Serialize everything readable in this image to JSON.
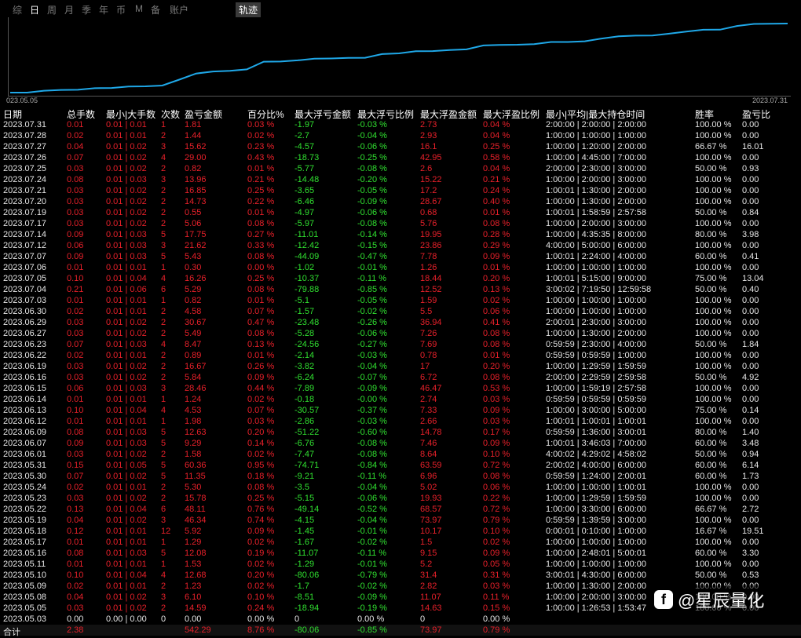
{
  "tabs": [
    "综",
    "日",
    "周",
    "月",
    "季",
    "年",
    "币",
    "M",
    "备",
    "账户"
  ],
  "active_tab": "日",
  "traj_label": "轨迹",
  "chart": {
    "start_label": "023.05.05",
    "end_label": "2023.07.31",
    "line_color": "#1fa8e8"
  },
  "headers": [
    "日期",
    "总手数",
    "最小|大手数",
    "次数",
    "盈亏金额",
    "百分比%",
    "最大浮亏金额",
    "最大浮亏比例",
    "最大浮盈金额",
    "最大浮盈比例",
    "最小|平均|最大持仓时间",
    "胜率",
    "盈亏比"
  ],
  "rows": [
    [
      "2023.07.31",
      "0.01",
      "0.01 | 0.01",
      "1",
      "1.81",
      "0.03 %",
      "-1.97",
      "-0.03 %",
      "2.73",
      "0.04 %",
      "2:00:00 | 2:00:00 | 2:00:00",
      "100.00 %",
      "0.00"
    ],
    [
      "2023.07.28",
      "0.02",
      "0.01 | 0.01",
      "2",
      "1.44",
      "0.02 %",
      "-2.7",
      "-0.04 %",
      "2.93",
      "0.04 %",
      "1:00:00 | 1:00:00 | 1:00:00",
      "100.00 %",
      "0.00"
    ],
    [
      "2023.07.27",
      "0.04",
      "0.01 | 0.02",
      "3",
      "15.62",
      "0.23 %",
      "-4.57",
      "-0.06 %",
      "16.1",
      "0.25 %",
      "1:00:00 | 1:20:00 | 2:00:00",
      "66.67 %",
      "16.01"
    ],
    [
      "2023.07.26",
      "0.07",
      "0.01 | 0.02",
      "4",
      "29.00",
      "0.43 %",
      "-18.73",
      "-0.25 %",
      "42.95",
      "0.58 %",
      "1:00:00 | 4:45:00 | 7:00:00",
      "100.00 %",
      "0.00"
    ],
    [
      "2023.07.25",
      "0.03",
      "0.01 | 0.02",
      "2",
      "0.82",
      "0.01 %",
      "-5.77",
      "-0.08 %",
      "2.6",
      "0.04 %",
      "2:00:00 | 2:30:00 | 3:00:00",
      "50.00 %",
      "0.93"
    ],
    [
      "2023.07.24",
      "0.08",
      "0.01 | 0.03",
      "3",
      "13.96",
      "0.21 %",
      "-14.48",
      "-0.20 %",
      "15.22",
      "0.21 %",
      "1:00:00 | 2:00:00 | 3:00:00",
      "100.00 %",
      "0.00"
    ],
    [
      "2023.07.21",
      "0.03",
      "0.01 | 0.02",
      "2",
      "16.85",
      "0.25 %",
      "-3.65",
      "-0.05 %",
      "17.2",
      "0.24 %",
      "1:00:01 | 1:30:00 | 2:00:00",
      "100.00 %",
      "0.00"
    ],
    [
      "2023.07.20",
      "0.03",
      "0.01 | 0.02",
      "2",
      "14.73",
      "0.22 %",
      "-6.46",
      "-0.09 %",
      "28.67",
      "0.40 %",
      "1:00:00 | 1:30:00 | 2:00:00",
      "100.00 %",
      "0.00"
    ],
    [
      "2023.07.19",
      "0.03",
      "0.01 | 0.02",
      "2",
      "0.55",
      "0.01 %",
      "-4.97",
      "-0.06 %",
      "0.68",
      "0.01 %",
      "1:00:01 | 1:58:59 | 2:57:58",
      "50.00 %",
      "0.84"
    ],
    [
      "2023.07.17",
      "0.03",
      "0.01 | 0.02",
      "2",
      "5.06",
      "0.08 %",
      "-5.97",
      "-0.08 %",
      "5.76",
      "0.08 %",
      "1:00:00 | 2:00:00 | 3:00:00",
      "100.00 %",
      "0.00"
    ],
    [
      "2023.07.14",
      "0.09",
      "0.01 | 0.03",
      "5",
      "17.75",
      "0.27 %",
      "-11.01",
      "-0.14 %",
      "19.95",
      "0.28 %",
      "1:00:00 | 4:35:35 | 8:00:00",
      "80.00 %",
      "3.98"
    ],
    [
      "2023.07.12",
      "0.06",
      "0.01 | 0.03",
      "3",
      "21.62",
      "0.33 %",
      "-12.42",
      "-0.15 %",
      "23.86",
      "0.29 %",
      "4:00:00 | 5:00:00 | 6:00:00",
      "100.00 %",
      "0.00"
    ],
    [
      "2023.07.07",
      "0.09",
      "0.01 | 0.03",
      "5",
      "5.43",
      "0.08 %",
      "-44.09",
      "-0.47 %",
      "7.78",
      "0.09 %",
      "1:00:01 | 2:24:00 | 4:00:00",
      "60.00 %",
      "0.41"
    ],
    [
      "2023.07.06",
      "0.01",
      "0.01 | 0.01",
      "1",
      "0.30",
      "0.00 %",
      "-1.02",
      "-0.01 %",
      "1.26",
      "0.01 %",
      "1:00:00 | 1:00:00 | 1:00:00",
      "100.00 %",
      "0.00"
    ],
    [
      "2023.07.05",
      "0.10",
      "0.01 | 0.04",
      "4",
      "16.26",
      "0.25 %",
      "-10.37",
      "-0.11 %",
      "18.44",
      "0.20 %",
      "1:00:01 | 5:15:00 | 9:00:00",
      "75.00 %",
      "13.04"
    ],
    [
      "2023.07.04",
      "0.21",
      "0.01 | 0.06",
      "6",
      "5.29",
      "0.08 %",
      "-79.88",
      "-0.85 %",
      "12.52",
      "0.13 %",
      "3:00:02 | 7:19:50 | 12:59:58",
      "50.00 %",
      "0.40"
    ],
    [
      "2023.07.03",
      "0.01",
      "0.01 | 0.01",
      "1",
      "0.82",
      "0.01 %",
      "-5.1",
      "-0.05 %",
      "1.59",
      "0.02 %",
      "1:00:00 | 1:00:00 | 1:00:00",
      "100.00 %",
      "0.00"
    ],
    [
      "2023.06.30",
      "0.02",
      "0.01 | 0.01",
      "2",
      "4.58",
      "0.07 %",
      "-1.57",
      "-0.02 %",
      "5.5",
      "0.06 %",
      "1:00:00 | 1:00:00 | 1:00:00",
      "100.00 %",
      "0.00"
    ],
    [
      "2023.06.29",
      "0.03",
      "0.01 | 0.02",
      "2",
      "30.67",
      "0.47 %",
      "-23.48",
      "-0.26 %",
      "36.94",
      "0.41 %",
      "2:00:01 | 2:30:00 | 3:00:00",
      "100.00 %",
      "0.00"
    ],
    [
      "2023.06.27",
      "0.03",
      "0.01 | 0.02",
      "2",
      "5.49",
      "0.08 %",
      "-5.28",
      "-0.06 %",
      "7.26",
      "0.08 %",
      "1:00:00 | 1:30:00 | 2:00:00",
      "100.00 %",
      "0.00"
    ],
    [
      "2023.06.23",
      "0.07",
      "0.01 | 0.03",
      "4",
      "8.47",
      "0.13 %",
      "-24.56",
      "-0.27 %",
      "7.69",
      "0.08 %",
      "0:59:59 | 2:30:00 | 4:00:00",
      "50.00 %",
      "1.84"
    ],
    [
      "2023.06.22",
      "0.02",
      "0.01 | 0.01",
      "2",
      "0.89",
      "0.01 %",
      "-2.14",
      "-0.03 %",
      "0.78",
      "0.01 %",
      "0:59:59 | 0:59:59 | 1:00:00",
      "100.00 %",
      "0.00"
    ],
    [
      "2023.06.19",
      "0.03",
      "0.01 | 0.02",
      "2",
      "16.67",
      "0.26 %",
      "-3.82",
      "-0.04 %",
      "17",
      "0.20 %",
      "1:00:00 | 1:29:59 | 1:59:59",
      "100.00 %",
      "0.00"
    ],
    [
      "2023.06.16",
      "0.03",
      "0.01 | 0.02",
      "2",
      "5.84",
      "0.09 %",
      "-6.24",
      "-0.07 %",
      "6.72",
      "0.08 %",
      "2:00:00 | 2:29:59 | 2:59:58",
      "50.00 %",
      "4.92"
    ],
    [
      "2023.06.15",
      "0.06",
      "0.01 | 0.03",
      "3",
      "28.46",
      "0.44 %",
      "-7.89",
      "-0.09 %",
      "46.47",
      "0.53 %",
      "1:00:00 | 1:59:19 | 2:57:58",
      "100.00 %",
      "0.00"
    ],
    [
      "2023.06.14",
      "0.01",
      "0.01 | 0.01",
      "1",
      "1.24",
      "0.02 %",
      "-0.18",
      "-0.00 %",
      "2.74",
      "0.03 %",
      "0:59:59 | 0:59:59 | 0:59:59",
      "100.00 %",
      "0.00"
    ],
    [
      "2023.06.13",
      "0.10",
      "0.01 | 0.04",
      "4",
      "4.53",
      "0.07 %",
      "-30.57",
      "-0.37 %",
      "7.33",
      "0.09 %",
      "1:00:00 | 3:00:00 | 5:00:00",
      "75.00 %",
      "0.14"
    ],
    [
      "2023.06.12",
      "0.01",
      "0.01 | 0.01",
      "1",
      "1.98",
      "0.03 %",
      "-2.86",
      "-0.03 %",
      "2.66",
      "0.03 %",
      "1:00:01 | 1:00:01 | 1:00:01",
      "100.00 %",
      "0.00"
    ],
    [
      "2023.06.09",
      "0.08",
      "0.01 | 0.03",
      "5",
      "12.63",
      "0.20 %",
      "-51.22",
      "-0.60 %",
      "14.78",
      "0.17 %",
      "0:59:59 | 1:36:00 | 3:00:01",
      "80.00 %",
      "1.40"
    ],
    [
      "2023.06.07",
      "0.09",
      "0.01 | 0.03",
      "5",
      "9.29",
      "0.14 %",
      "-6.76",
      "-0.08 %",
      "7.46",
      "0.09 %",
      "1:00:01 | 3:46:03 | 7:00:00",
      "60.00 %",
      "3.48"
    ],
    [
      "2023.06.01",
      "0.03",
      "0.01 | 0.02",
      "2",
      "1.58",
      "0.02 %",
      "-7.47",
      "-0.08 %",
      "8.64",
      "0.10 %",
      "4:00:02 | 4:29:02 | 4:58:02",
      "50.00 %",
      "0.94"
    ],
    [
      "2023.05.31",
      "0.15",
      "0.01 | 0.05",
      "5",
      "60.36",
      "0.95 %",
      "-74.71",
      "-0.84 %",
      "63.59",
      "0.72 %",
      "2:00:02 | 4:00:00 | 6:00:00",
      "60.00 %",
      "6.14"
    ],
    [
      "2023.05.30",
      "0.07",
      "0.01 | 0.02",
      "5",
      "11.35",
      "0.18 %",
      "-9.21",
      "-0.11 %",
      "6.96",
      "0.08 %",
      "0:59:59 | 1:24:00 | 2:00:01",
      "60.00 %",
      "1.73"
    ],
    [
      "2023.05.24",
      "0.02",
      "0.01 | 0.01",
      "2",
      "5.30",
      "0.08 %",
      "-3.5",
      "-0.04 %",
      "5.02",
      "0.06 %",
      "1:00:00 | 1:00:00 | 1:00:01",
      "100.00 %",
      "0.00"
    ],
    [
      "2023.05.23",
      "0.03",
      "0.01 | 0.02",
      "2",
      "15.78",
      "0.25 %",
      "-5.15",
      "-0.06 %",
      "19.93",
      "0.22 %",
      "1:00:00 | 1:29:59 | 1:59:59",
      "100.00 %",
      "0.00"
    ],
    [
      "2023.05.22",
      "0.13",
      "0.01 | 0.04",
      "6",
      "48.11",
      "0.76 %",
      "-49.14",
      "-0.52 %",
      "68.57",
      "0.72 %",
      "1:00:00 | 3:30:00 | 6:00:00",
      "66.67 %",
      "2.72"
    ],
    [
      "2023.05.19",
      "0.04",
      "0.01 | 0.02",
      "3",
      "46.34",
      "0.74 %",
      "-4.15",
      "-0.04 %",
      "73.97",
      "0.79 %",
      "0:59:59 | 1:39:59 | 3:00:00",
      "100.00 %",
      "0.00"
    ],
    [
      "2023.05.18",
      "0.12",
      "0.01 | 0.01",
      "12",
      "5.92",
      "0.09 %",
      "-1.45",
      "-0.01 %",
      "10.17",
      "0.10 %",
      "0:00:01 | 0:10:00 | 1:00:00",
      "16.67 %",
      "19.51"
    ],
    [
      "2023.05.17",
      "0.01",
      "0.01 | 0.01",
      "1",
      "1.29",
      "0.02 %",
      "-1.67",
      "-0.02 %",
      "1.5",
      "0.02 %",
      "1:00:00 | 1:00:00 | 1:00:00",
      "100.00 %",
      "0.00"
    ],
    [
      "2023.05.16",
      "0.08",
      "0.01 | 0.03",
      "5",
      "12.08",
      "0.19 %",
      "-11.07",
      "-0.11 %",
      "9.15",
      "0.09 %",
      "1:00:00 | 2:48:01 | 5:00:01",
      "60.00 %",
      "3.30"
    ],
    [
      "2023.05.11",
      "0.01",
      "0.01 | 0.01",
      "1",
      "1.53",
      "0.02 %",
      "-1.29",
      "-0.01 %",
      "5.2",
      "0.05 %",
      "1:00:00 | 1:00:00 | 1:00:00",
      "100.00 %",
      "0.00"
    ],
    [
      "2023.05.10",
      "0.10",
      "0.01 | 0.04",
      "4",
      "12.68",
      "0.20 %",
      "-80.06",
      "-0.79 %",
      "31.4",
      "0.31 %",
      "3:00:01 | 4:30:00 | 6:00:00",
      "50.00 %",
      "0.53"
    ],
    [
      "2023.05.09",
      "0.02",
      "0.01 | 0.01",
      "2",
      "1.23",
      "0.02 %",
      "-1.7",
      "-0.02 %",
      "2.82",
      "0.03 %",
      "1:00:00 | 1:30:00 | 2:00:00",
      "100.00 %",
      "0.00"
    ],
    [
      "2023.05.08",
      "0.04",
      "0.01 | 0.02",
      "3",
      "6.10",
      "0.10 %",
      "-8.51",
      "-0.09 %",
      "11.07",
      "0.11 %",
      "1:00:00 | 2:00:00 | 3:00:00",
      "100.00 %",
      "0.00"
    ],
    [
      "2023.05.05",
      "0.03",
      "0.01 | 0.02",
      "2",
      "14.59",
      "0.24 %",
      "-18.94",
      "-0.19 %",
      "14.63",
      "0.15 %",
      "1:00:00 | 1:26:53 | 1:53:47",
      "100.00 %",
      "0.00"
    ],
    [
      "2023.05.03",
      "0.00",
      "0.00 | 0.00",
      "0",
      "0.00",
      "0.00 %",
      "0",
      "0.00 %",
      "0",
      "0.00 %",
      "",
      "",
      ""
    ]
  ],
  "total": [
    "合计",
    "2.38",
    "",
    "",
    "542.29",
    "8.76 %",
    "-80.06",
    "-0.85 %",
    "73.97",
    "0.79 %",
    "",
    "",
    ""
  ],
  "watermark": {
    "logo": "f",
    "text": "@星辰量化"
  }
}
